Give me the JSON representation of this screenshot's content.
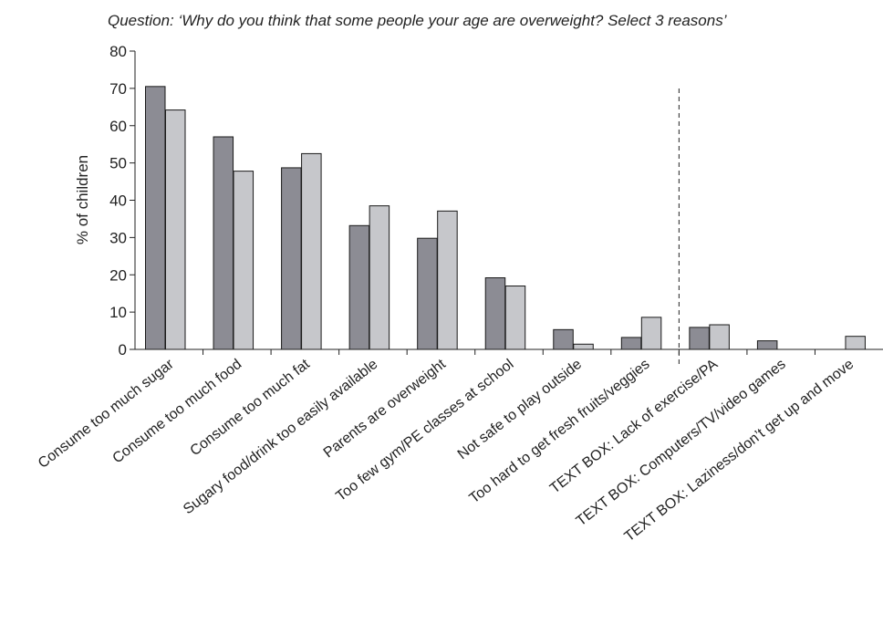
{
  "chart_data": {
    "type": "bar",
    "subtitle": "Question: ‘Why do you think that some people your age are overweight? Select 3 reasons’",
    "xlabel": "",
    "ylabel": "% of children",
    "ylim": [
      0,
      80
    ],
    "yticks": [
      "0",
      "10",
      "20",
      "30",
      "40",
      "50",
      "60",
      "70",
      "80"
    ],
    "grid": false,
    "legend": "none",
    "categories": [
      "Consume too much sugar",
      "Consume too much food",
      "Consume too much fat",
      "Sugary food/drink too easily available",
      "Parents are overweight",
      "Too few gym/PE classes at school",
      "Not safe to play outside",
      "Too hard to get fresh fruits/veggies",
      "TEXT BOX: Lack of exercise/PA",
      "TEXT BOX: Computers/TV/video games",
      "TEXT BOX: Laziness/don’t get up and move"
    ],
    "series": [
      {
        "color": "#8c8c94",
        "values": [
          70.5,
          57,
          48.7,
          33.2,
          29.8,
          19.2,
          5.3,
          3.2,
          5.9,
          2.3,
          0
        ]
      },
      {
        "color": "#c6c7cb",
        "values": [
          64.2,
          47.8,
          52.5,
          38.5,
          37.1,
          17.0,
          1.4,
          8.6,
          6.6,
          0,
          3.5
        ]
      }
    ],
    "divider_after_category": 7
  }
}
